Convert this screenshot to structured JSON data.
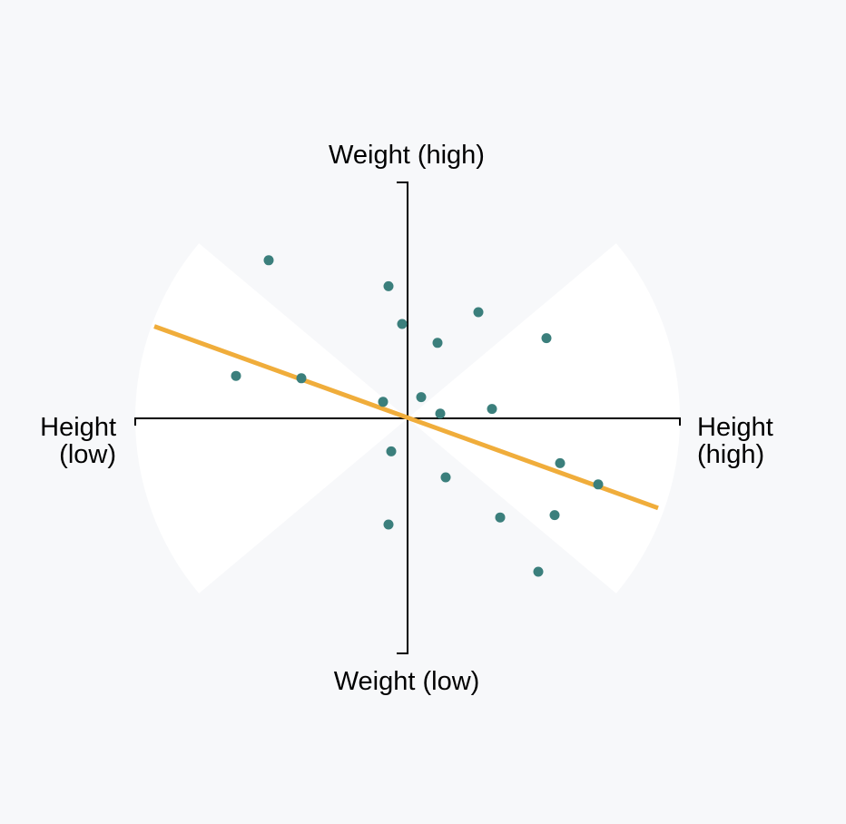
{
  "colors": {
    "background": "#f7f8fa",
    "wedge": "#ffffff",
    "point": "#3b7f7c",
    "fit_line": "#f0ad3b",
    "axis": "#000000"
  },
  "chart_data": {
    "type": "scatter",
    "axis_labels": {
      "y_top": "Weight (high)",
      "y_bottom": "Weight (low)",
      "x_left": [
        "Height",
        "(low)"
      ],
      "x_right": [
        "Height",
        "(high)"
      ]
    },
    "xlim": [
      -1,
      1
    ],
    "ylim": [
      -1,
      1
    ],
    "points": [
      {
        "x": -0.51,
        "y": 0.67
      },
      {
        "x": -0.07,
        "y": 0.56
      },
      {
        "x": -0.02,
        "y": 0.4
      },
      {
        "x": 0.26,
        "y": 0.45
      },
      {
        "x": 0.11,
        "y": 0.32
      },
      {
        "x": 0.51,
        "y": 0.34
      },
      {
        "x": -0.63,
        "y": 0.18
      },
      {
        "x": -0.39,
        "y": 0.17
      },
      {
        "x": -0.09,
        "y": 0.07
      },
      {
        "x": 0.05,
        "y": 0.09
      },
      {
        "x": 0.12,
        "y": 0.02
      },
      {
        "x": 0.31,
        "y": 0.04
      },
      {
        "x": -0.06,
        "y": -0.14
      },
      {
        "x": 0.14,
        "y": -0.25
      },
      {
        "x": 0.56,
        "y": -0.19
      },
      {
        "x": 0.7,
        "y": -0.28
      },
      {
        "x": -0.07,
        "y": -0.45
      },
      {
        "x": 0.34,
        "y": -0.42
      },
      {
        "x": 0.54,
        "y": -0.41
      },
      {
        "x": 0.48,
        "y": -0.65
      }
    ],
    "fit_line": {
      "x": [
        -0.93,
        0.92
      ],
      "y": [
        0.39,
        -0.38
      ]
    },
    "wedge_half_angle_deg": 40
  }
}
